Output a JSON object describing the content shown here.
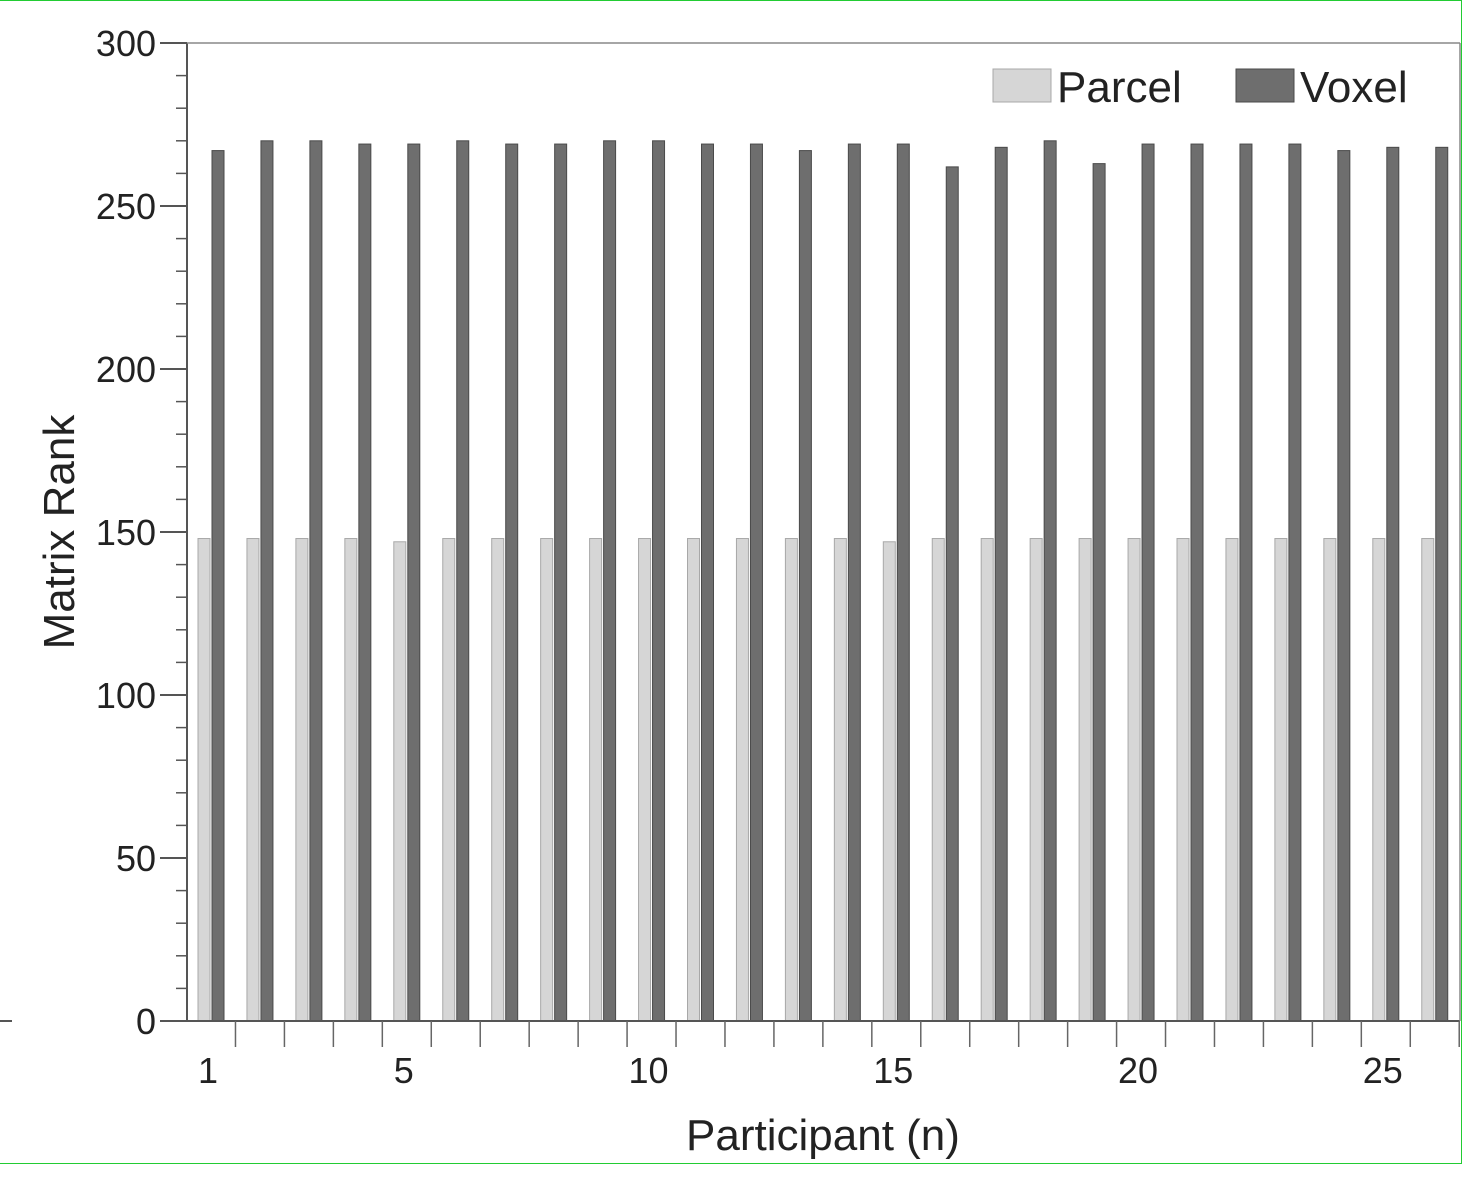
{
  "chart_data": {
    "type": "bar",
    "xlabel": "Participant (n)",
    "ylabel": "Matrix Rank",
    "ylim": [
      0,
      300
    ],
    "yticks": [
      "0",
      "50",
      "100",
      "150",
      "200",
      "250",
      "300"
    ],
    "xticks": [
      {
        "value": 1,
        "label": "1"
      },
      {
        "value": 5,
        "label": "5"
      },
      {
        "value": 10,
        "label": "10"
      },
      {
        "value": 15,
        "label": "15"
      },
      {
        "value": 20,
        "label": "20"
      },
      {
        "value": 25,
        "label": "25"
      }
    ],
    "categories": [
      1,
      2,
      3,
      4,
      5,
      6,
      7,
      8,
      9,
      10,
      11,
      12,
      13,
      14,
      15,
      16,
      17,
      18,
      19,
      20,
      21,
      22,
      23,
      24,
      25,
      26
    ],
    "legend_position": "top-right",
    "series": [
      {
        "name": "Parcel",
        "color": "#d6d6d6",
        "values": [
          148,
          148,
          148,
          148,
          147,
          148,
          148,
          148,
          148,
          148,
          148,
          148,
          148,
          148,
          147,
          148,
          148,
          148,
          148,
          148,
          148,
          148,
          148,
          148,
          148,
          148
        ]
      },
      {
        "name": "Voxel",
        "color": "#6e6e6e",
        "values": [
          267,
          270,
          270,
          269,
          269,
          270,
          269,
          269,
          270,
          270,
          269,
          269,
          267,
          269,
          269,
          262,
          268,
          270,
          263,
          269,
          269,
          269,
          269,
          267,
          268,
          268
        ]
      }
    ]
  }
}
